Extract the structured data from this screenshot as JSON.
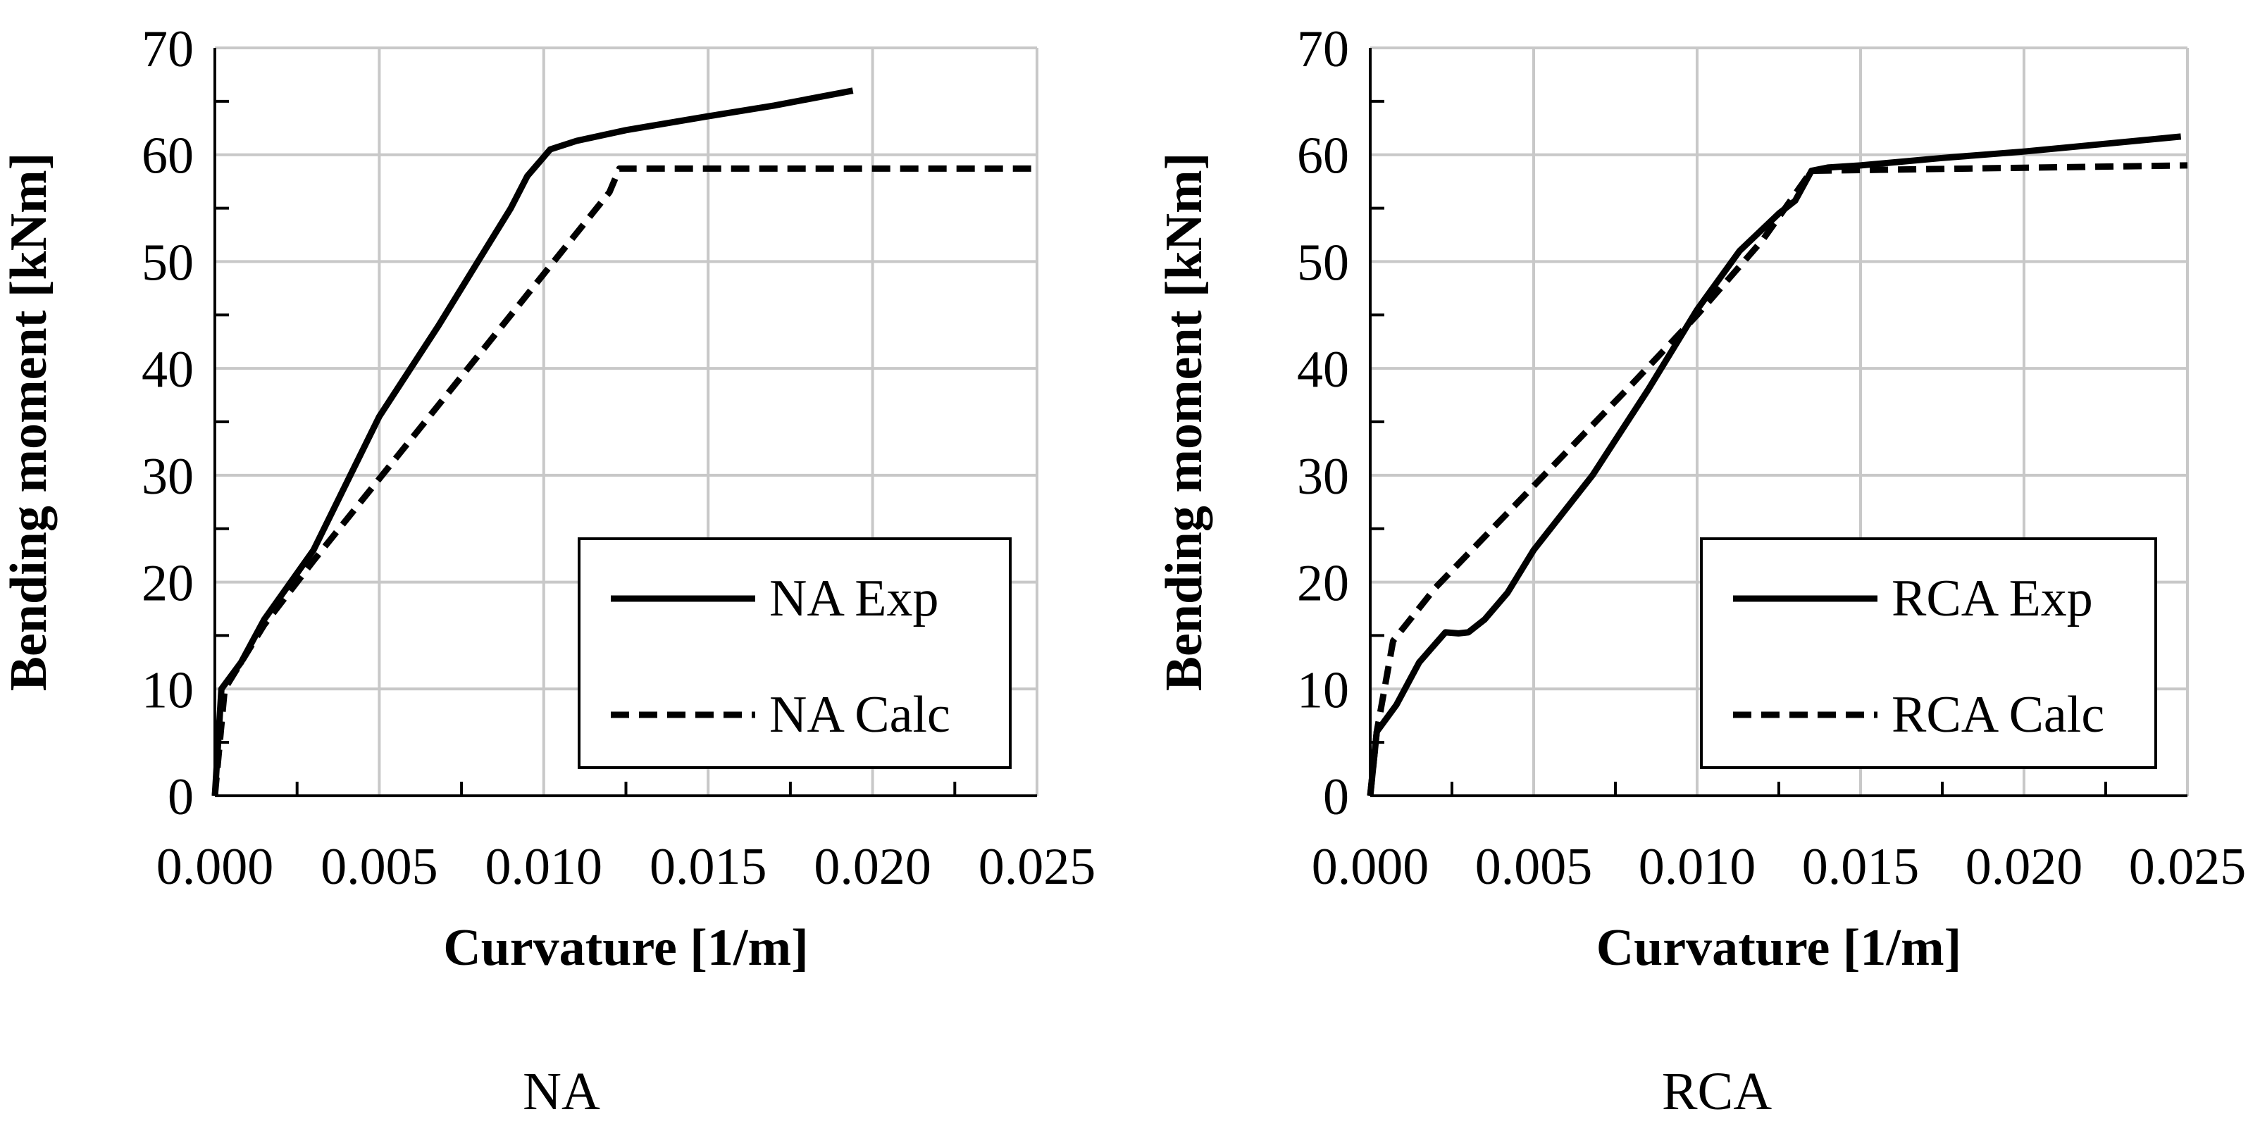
{
  "chart_data": [
    {
      "type": "line",
      "caption": "NA",
      "xlabel": "Curvature [1/m]",
      "ylabel": "Bending moment [kNm]",
      "xlim": [
        0,
        0.025
      ],
      "ylim": [
        0,
        70
      ],
      "x_ticks": [
        0,
        0.005,
        0.01,
        0.015,
        0.02,
        0.025
      ],
      "x_tick_labels": [
        "0.000",
        "0.005",
        "0.010",
        "0.015",
        "0.020",
        "0.025"
      ],
      "y_ticks": [
        0,
        10,
        20,
        30,
        40,
        50,
        60,
        70
      ],
      "y_tick_labels": [
        "0",
        "10",
        "20",
        "30",
        "40",
        "50",
        "60",
        "70"
      ],
      "grid": true,
      "legend_position": "bottom-right",
      "series": [
        {
          "name": "NA Exp",
          "style": "solid",
          "x": [
            0,
            0.0002,
            0.0008,
            0.0015,
            0.003,
            0.005,
            0.0068,
            0.008,
            0.009,
            0.0095,
            0.0102,
            0.011,
            0.0125,
            0.015,
            0.017,
            0.0194
          ],
          "y": [
            0,
            10,
            12.5,
            16.5,
            23,
            35.5,
            44,
            50,
            55,
            58,
            60.5,
            61.3,
            62.3,
            63.6,
            64.6,
            66
          ]
        },
        {
          "name": "NA Calc",
          "style": "dashed",
          "x": [
            0,
            0.0003,
            0.0015,
            0.003,
            0.012,
            0.0123,
            0.025
          ],
          "y": [
            0,
            10,
            16,
            22,
            56.5,
            58.7,
            58.7
          ]
        }
      ]
    },
    {
      "type": "line",
      "caption": "RCA",
      "xlabel": "Curvature [1/m]",
      "ylabel": "Bending moment [kNm]",
      "xlim": [
        0,
        0.025
      ],
      "ylim": [
        0,
        70
      ],
      "x_ticks": [
        0,
        0.005,
        0.01,
        0.015,
        0.02,
        0.025
      ],
      "x_tick_labels": [
        "0.000",
        "0.005",
        "0.010",
        "0.015",
        "0.020",
        "0.025"
      ],
      "y_ticks": [
        0,
        10,
        20,
        30,
        40,
        50,
        60,
        70
      ],
      "y_tick_labels": [
        "0",
        "10",
        "20",
        "30",
        "40",
        "50",
        "60",
        "70"
      ],
      "grid": true,
      "legend_position": "bottom-right",
      "series": [
        {
          "name": "RCA Exp",
          "style": "solid",
          "x": [
            0,
            0.0002,
            0.0008,
            0.0015,
            0.0023,
            0.0027,
            0.003,
            0.0035,
            0.0042,
            0.005,
            0.0068,
            0.0085,
            0.01,
            0.0113,
            0.0125,
            0.013,
            0.0135,
            0.014,
            0.015,
            0.0175,
            0.02,
            0.0248
          ],
          "y": [
            0,
            6,
            8.5,
            12.5,
            15.3,
            15.2,
            15.3,
            16.5,
            19,
            23,
            30,
            38,
            45.5,
            51,
            54.5,
            55.7,
            58.5,
            58.8,
            59,
            59.7,
            60.3,
            61.7
          ]
        },
        {
          "name": "RCA Calc",
          "style": "dashed",
          "x": [
            0,
            0.0002,
            0.0007,
            0.002,
            0.005,
            0.008,
            0.01,
            0.012,
            0.0135,
            0.025
          ],
          "y": [
            0,
            6,
            14.5,
            19.5,
            29,
            38.5,
            45,
            52,
            58.5,
            59
          ]
        }
      ]
    }
  ]
}
